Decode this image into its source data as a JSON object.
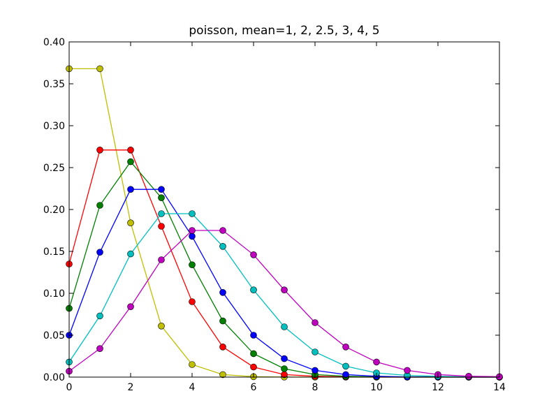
{
  "chart_data": {
    "type": "line",
    "title": "poisson, mean=1, 2, 2.5, 3, 4, 5",
    "xlabel": "",
    "ylabel": "",
    "xlim": [
      0,
      14
    ],
    "ylim": [
      0,
      0.4
    ],
    "xticks": [
      "0",
      "2",
      "4",
      "6",
      "8",
      "10",
      "12",
      "14"
    ],
    "yticks": [
      "0.00",
      "0.05",
      "0.10",
      "0.15",
      "0.20",
      "0.25",
      "0.30",
      "0.35",
      "0.40"
    ],
    "grid": false,
    "marker": "circle",
    "x": [
      0,
      1,
      2,
      3,
      4,
      5,
      6,
      7,
      8,
      9,
      10,
      11,
      12,
      13,
      14
    ],
    "series": [
      {
        "color": "#bfbf00",
        "values": [
          0.368,
          0.368,
          0.184,
          0.061,
          0.015,
          0.003,
          0.0005,
          0.0001,
          0.0,
          0.0,
          0.0,
          0.0,
          0.0,
          0.0,
          0.0
        ]
      },
      {
        "color": "#ff0000",
        "values": [
          0.135,
          0.271,
          0.271,
          0.18,
          0.09,
          0.036,
          0.012,
          0.003,
          0.001,
          0.0002,
          0.0,
          0.0,
          0.0,
          0.0,
          0.0
        ]
      },
      {
        "color": "#008000",
        "values": [
          0.082,
          0.205,
          0.257,
          0.214,
          0.134,
          0.067,
          0.028,
          0.01,
          0.003,
          0.001,
          0.0002,
          0.0,
          0.0,
          0.0,
          0.0
        ]
      },
      {
        "color": "#0000ff",
        "values": [
          0.05,
          0.149,
          0.224,
          0.224,
          0.168,
          0.101,
          0.05,
          0.022,
          0.008,
          0.003,
          0.001,
          0.0002,
          0.0001,
          0.0,
          0.0
        ]
      },
      {
        "color": "#00bfbf",
        "values": [
          0.018,
          0.073,
          0.147,
          0.195,
          0.195,
          0.156,
          0.104,
          0.06,
          0.03,
          0.013,
          0.005,
          0.002,
          0.001,
          0.0002,
          0.0001
        ]
      },
      {
        "color": "#bf00bf",
        "values": [
          0.007,
          0.034,
          0.084,
          0.14,
          0.175,
          0.175,
          0.146,
          0.104,
          0.065,
          0.036,
          0.018,
          0.008,
          0.003,
          0.001,
          0.0005
        ]
      }
    ]
  }
}
